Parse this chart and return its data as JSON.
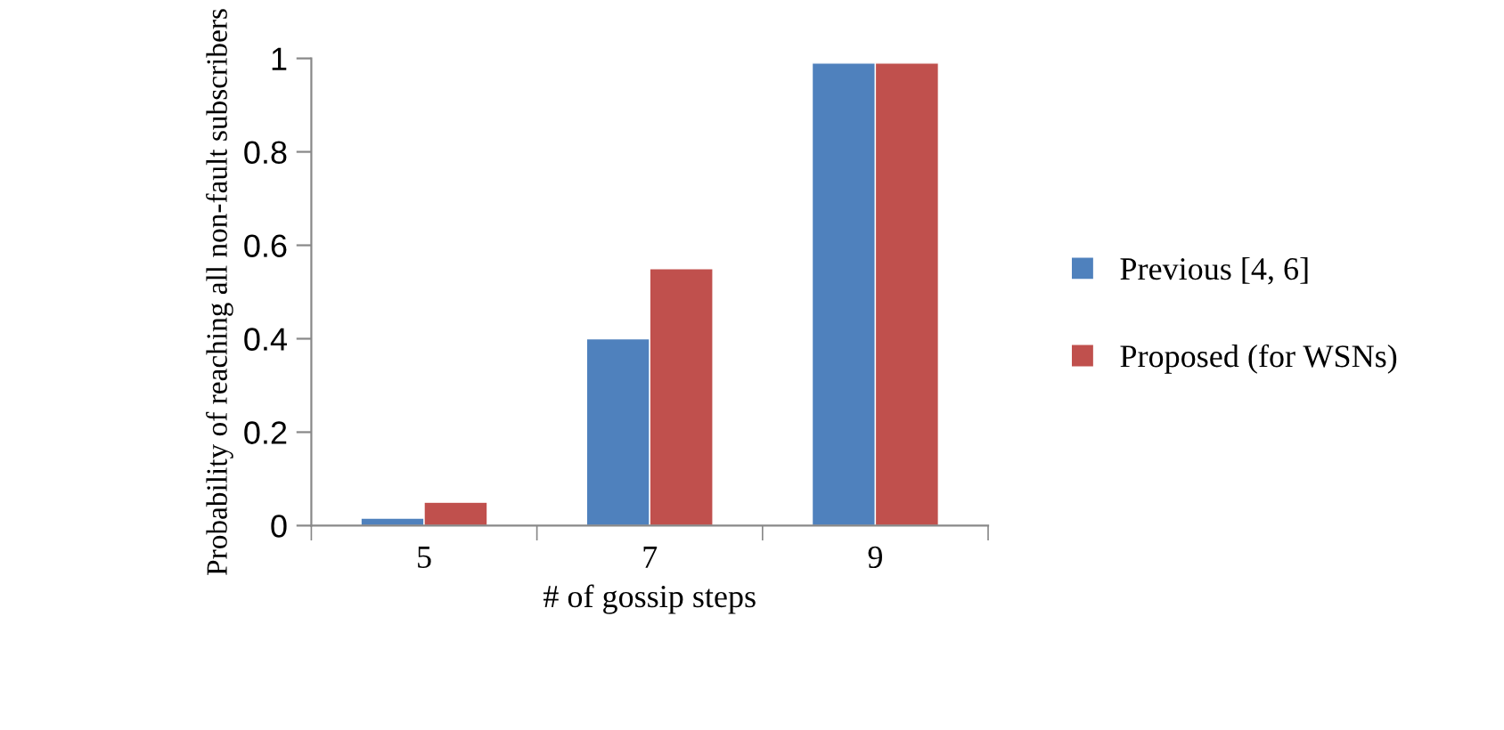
{
  "chart_data": {
    "type": "bar",
    "xlabel": "# of gossip steps",
    "ylabel": "Probability of reaching all non-fault subscribers",
    "categories": [
      "5",
      "7",
      "9"
    ],
    "series": [
      {
        "name": "Previous [4, 6]",
        "color": "#4f81bd",
        "values": [
          0.016,
          0.4,
          0.99
        ]
      },
      {
        "name": "Proposed (for WSNs)",
        "color": "#c0504d",
        "values": [
          0.05,
          0.55,
          0.99
        ]
      }
    ],
    "ylim": [
      0,
      1
    ],
    "yticks": [
      0,
      0.2,
      0.4,
      0.6,
      0.8,
      1
    ],
    "grid": false,
    "legend": "right"
  }
}
